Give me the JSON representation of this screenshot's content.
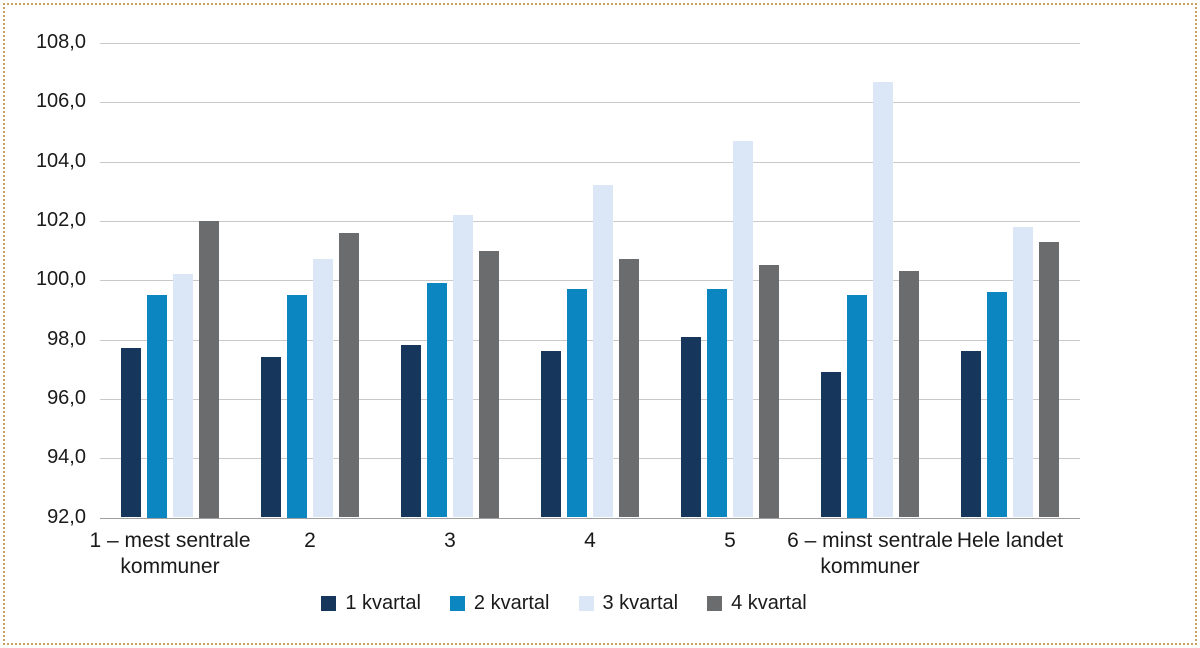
{
  "chart_data": {
    "type": "bar",
    "title": "",
    "xlabel": "",
    "ylabel": "",
    "grid": true,
    "legend_position": "bottom",
    "ylim": [
      92,
      108
    ],
    "categories": [
      "1 – mest sentrale kommuner",
      "2",
      "3",
      "4",
      "5",
      "6 – minst sentrale kommuner",
      "Hele landet"
    ],
    "series": [
      {
        "name": "1 kvartal",
        "color": "#16365c",
        "values": [
          97.7,
          97.4,
          97.8,
          97.6,
          98.1,
          96.9,
          97.6
        ]
      },
      {
        "name": "2 kvartal",
        "color": "#0b86c1",
        "values": [
          99.5,
          99.5,
          99.9,
          99.7,
          99.7,
          99.5,
          99.6
        ]
      },
      {
        "name": "3 kvartal",
        "color": "#dbe7f6",
        "values": [
          100.2,
          100.7,
          102.2,
          103.2,
          104.7,
          106.7,
          101.8
        ]
      },
      {
        "name": "4 kvartal",
        "color": "#6b6c6e",
        "values": [
          102.0,
          101.6,
          101.0,
          100.7,
          100.5,
          100.3,
          101.3
        ]
      }
    ],
    "yticks": [
      {
        "value": 108,
        "label": "108,0"
      },
      {
        "value": 106,
        "label": "106,0"
      },
      {
        "value": 104,
        "label": "104,0"
      },
      {
        "value": 102,
        "label": "102,0"
      },
      {
        "value": 100,
        "label": "100,0"
      },
      {
        "value": 98,
        "label": "98,0"
      },
      {
        "value": 96,
        "label": "96,0"
      },
      {
        "value": 94,
        "label": "94,0"
      },
      {
        "value": 92,
        "label": "92,0"
      }
    ]
  },
  "colors": {
    "background": "#ffffff",
    "gridline": "#c9c9c9",
    "axis_line": "#9f9f9f",
    "text": "#1a1a1a",
    "border_dots": "#c3a45f"
  }
}
